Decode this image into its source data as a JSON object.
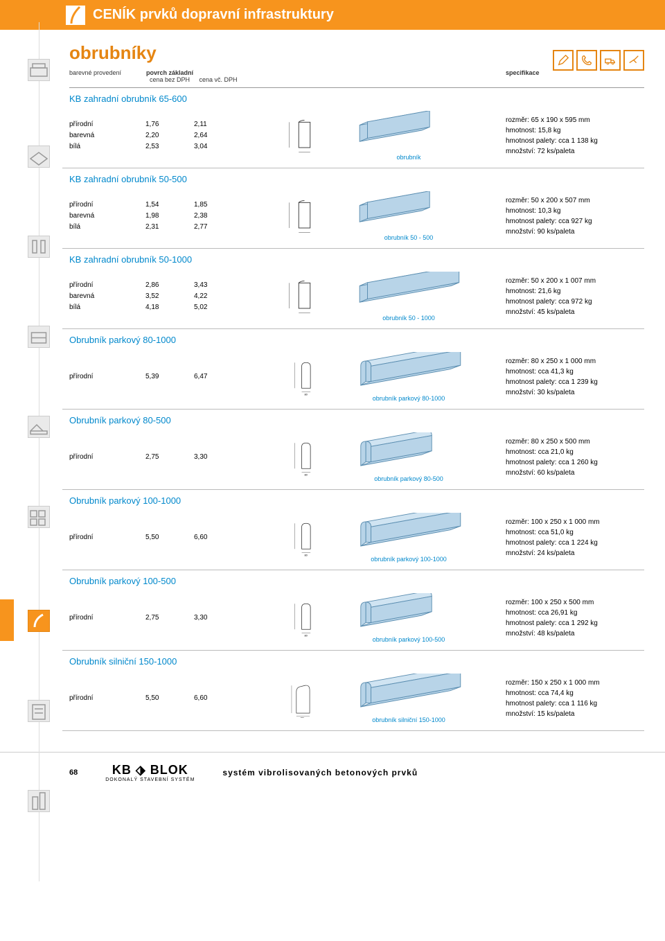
{
  "header": {
    "title": "CENÍK prvků dopravní infrastruktury"
  },
  "main_title": "obrubníky",
  "col_headers": {
    "c1": "barevné provedení",
    "c2a": "povrch základní",
    "c2b": "cena bez DPH",
    "c3b": "cena vč. DPH",
    "c5": "specifikace"
  },
  "sections": [
    {
      "title": "KB zahradní obrubník 65-600",
      "variants": [
        "přírodní",
        "barevná",
        "bílá"
      ],
      "prices1": [
        "1,76",
        "2,20",
        "2,53"
      ],
      "prices2": [
        "2,11",
        "2,64",
        "3,04"
      ],
      "iso_label": "obrubník",
      "specs": [
        "rozměr: 65 x 190 x 595 mm",
        "hmotnost: 15,8 kg",
        "hmotnost palety: cca 1 138 kg",
        "množství: 72 ks/paleta"
      ]
    },
    {
      "title": "KB zahradní obrubník 50-500",
      "variants": [
        "přírodní",
        "barevná",
        "bílá"
      ],
      "prices1": [
        "1,54",
        "1,98",
        "2,31"
      ],
      "prices2": [
        "1,85",
        "2,38",
        "2,77"
      ],
      "iso_label": "obrubník 50 - 500",
      "specs": [
        "rozměr: 50 x 200 x 507 mm",
        "hmotnost: 10,3 kg",
        "hmotnost palety: cca 927 kg",
        "množství: 90 ks/paleta"
      ]
    },
    {
      "title": "KB zahradní obrubník 50-1000",
      "variants": [
        "přírodní",
        "barevná",
        "bílá"
      ],
      "prices1": [
        "2,86",
        "3,52",
        "4,18"
      ],
      "prices2": [
        "3,43",
        "4,22",
        "5,02"
      ],
      "iso_label": "obrubník 50 - 1000",
      "specs": [
        "rozměr: 50 x 200 x 1 007 mm",
        "hmotnost: 21,6 kg",
        "hmotnost palety: cca 972 kg",
        "množství: 45 ks/paleta"
      ]
    },
    {
      "title": "Obrubník parkový 80-1000",
      "variants": [
        "přírodní"
      ],
      "prices1": [
        "5,39"
      ],
      "prices2": [
        "6,47"
      ],
      "iso_label": "obrubník parkový 80-1000",
      "specs": [
        "rozměr: 80 x 250 x 1 000 mm",
        "hmotnost: cca 41,3 kg",
        "hmotnost palety: cca 1 239 kg",
        "množství: 30 ks/paleta"
      ]
    },
    {
      "title": "Obrubník parkový 80-500",
      "variants": [
        "přírodní"
      ],
      "prices1": [
        "2,75"
      ],
      "prices2": [
        "3,30"
      ],
      "iso_label": "obrubník parkový 80-500",
      "specs": [
        "rozměr: 80 x 250 x 500 mm",
        "hmotnost: cca 21,0 kg",
        "hmotnost palety: cca 1 260 kg",
        "množství: 60 ks/paleta"
      ]
    },
    {
      "title": "Obrubník parkový 100-1000",
      "variants": [
        "přírodní"
      ],
      "prices1": [
        "5,50"
      ],
      "prices2": [
        "6,60"
      ],
      "iso_label": "obrubník parkový 100-1000",
      "specs": [
        "rozměr: 100 x 250 x 1 000 mm",
        "hmotnost: cca 51,0 kg",
        "hmotnost palety: cca 1 224 kg",
        "množství: 24 ks/paleta"
      ]
    },
    {
      "title": "Obrubník parkový 100-500",
      "variants": [
        "přírodní"
      ],
      "prices1": [
        "2,75"
      ],
      "prices2": [
        "3,30"
      ],
      "iso_label": "obrubník parkový 100-500",
      "specs": [
        "rozměr: 100 x 250 x 500 mm",
        "hmotnost: cca 26,91 kg",
        "hmotnost palety: cca 1 292 kg",
        "množství: 48 ks/paleta"
      ]
    },
    {
      "title": "Obrubník silniční 150-1000",
      "variants": [
        "přírodní"
      ],
      "prices1": [
        "5,50"
      ],
      "prices2": [
        "6,60"
      ],
      "iso_label": "obrubník silniční 150-1000",
      "specs": [
        "rozměr: 150 x 250 x 1 000 mm",
        "hmotnost: cca 74,4 kg",
        "hmotnost palety: cca 1 116 kg",
        "množství: 15 ks/paleta"
      ]
    }
  ],
  "footer": {
    "page": "68",
    "logo": "KB ⬗ BLOK",
    "logo_sub": "DOKONALÝ STAVEBNÍ SYSTÉM",
    "text": "systém vibrolisovaných betonových prvků"
  },
  "colors": {
    "orange": "#f7941d",
    "blue": "#0088cc",
    "curb_fill": "#b8d4e8",
    "curb_stroke": "#5a8db0"
  }
}
